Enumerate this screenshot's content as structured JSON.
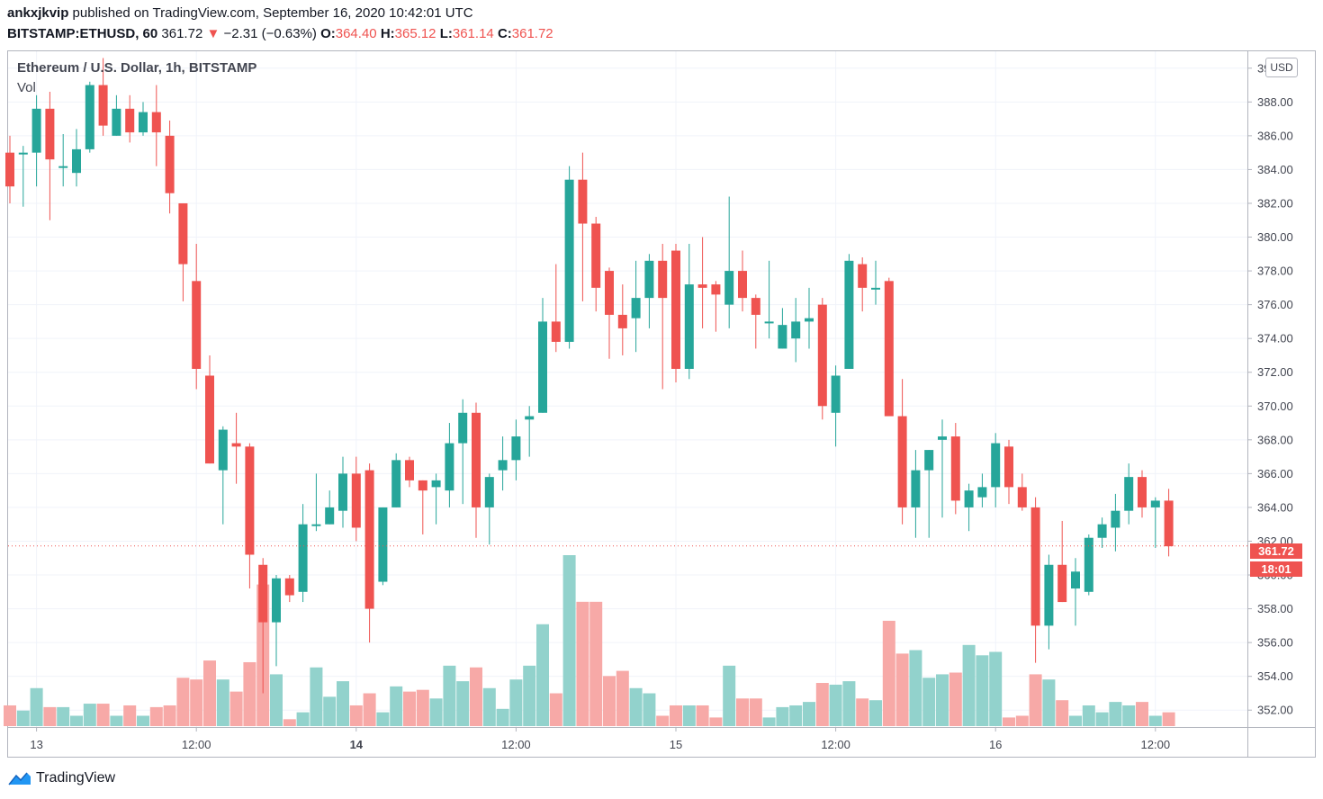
{
  "header": {
    "author": "ankxjkvip",
    "published_text": "published on TradingView.com, September 16, 2020 10:42:01 UTC",
    "symbol": "BITSTAMP:ETHUSD, 60",
    "last": "361.72",
    "change": "−2.31 (−0.63%)",
    "o_label": "O:",
    "o_val": "364.40",
    "h_label": "H:",
    "h_val": "365.12",
    "l_label": "L:",
    "l_val": "361.14",
    "c_label": "C:",
    "c_val": "361.72"
  },
  "legend": {
    "title": "Ethereum / U.S. Dollar, 1h, BITSTAMP",
    "vol": "Vol"
  },
  "currency_button": "USD",
  "price_tag": {
    "price": "361.72",
    "countdown": "18:01"
  },
  "footer": {
    "brand": "TradingView"
  },
  "colors": {
    "up": "#26a69a",
    "down": "#ef5350",
    "up_vol": "#92d2cc",
    "down_vol": "#f7a9a7"
  },
  "chart_data": {
    "type": "candlestick",
    "title": "Ethereum / U.S. Dollar, 1h, BITSTAMP",
    "ylim": [
      351,
      391
    ],
    "y_ticks": [
      352,
      354,
      356,
      358,
      360,
      362,
      364,
      366,
      368,
      370,
      372,
      374,
      376,
      378,
      380,
      382,
      384,
      386,
      388,
      390
    ],
    "x_ticks": [
      {
        "label": "13",
        "bold": false,
        "index": 2
      },
      {
        "label": "12:00",
        "bold": false,
        "index": 14
      },
      {
        "label": "14",
        "bold": true,
        "index": 26
      },
      {
        "label": "12:00",
        "bold": false,
        "index": 38
      },
      {
        "label": "15",
        "bold": false,
        "index": 50
      },
      {
        "label": "12:00",
        "bold": false,
        "index": 62
      },
      {
        "label": "16",
        "bold": false,
        "index": 74
      },
      {
        "label": "12:00",
        "bold": false,
        "index": 86
      }
    ],
    "last_price": 361.72,
    "candles": [
      {
        "o": 385.0,
        "h": 386.0,
        "l": 382.0,
        "c": 383.0,
        "v": 12
      },
      {
        "o": 384.9,
        "h": 385.4,
        "l": 381.8,
        "c": 385.0,
        "v": 9
      },
      {
        "o": 385.0,
        "h": 388.4,
        "l": 383.0,
        "c": 387.6,
        "v": 22
      },
      {
        "o": 387.6,
        "h": 388.6,
        "l": 381.0,
        "c": 384.6,
        "v": 11
      },
      {
        "o": 384.2,
        "h": 386.1,
        "l": 383.0,
        "c": 384.2,
        "v": 11
      },
      {
        "o": 383.8,
        "h": 386.4,
        "l": 383.0,
        "c": 385.2,
        "v": 6
      },
      {
        "o": 385.2,
        "h": 389.2,
        "l": 385.0,
        "c": 389.0,
        "v": 13
      },
      {
        "o": 389.0,
        "h": 390.6,
        "l": 386.0,
        "c": 386.6,
        "v": 13
      },
      {
        "o": 386.0,
        "h": 388.4,
        "l": 386.0,
        "c": 387.6,
        "v": 6
      },
      {
        "o": 387.6,
        "h": 388.4,
        "l": 385.6,
        "c": 386.2,
        "v": 12
      },
      {
        "o": 386.2,
        "h": 388.0,
        "l": 386.0,
        "c": 387.4,
        "v": 6
      },
      {
        "o": 387.4,
        "h": 389.0,
        "l": 384.2,
        "c": 386.2,
        "v": 11
      },
      {
        "o": 386.0,
        "h": 386.9,
        "l": 381.4,
        "c": 382.6,
        "v": 12
      },
      {
        "o": 382.0,
        "h": 382.0,
        "l": 376.2,
        "c": 378.4,
        "v": 28
      },
      {
        "o": 377.4,
        "h": 379.6,
        "l": 371.0,
        "c": 372.2,
        "v": 27
      },
      {
        "o": 371.8,
        "h": 373.0,
        "l": 366.6,
        "c": 366.6,
        "v": 38
      },
      {
        "o": 366.2,
        "h": 368.8,
        "l": 363.0,
        "c": 368.6,
        "v": 27
      },
      {
        "o": 367.8,
        "h": 369.6,
        "l": 365.4,
        "c": 367.6,
        "v": 20
      },
      {
        "o": 367.6,
        "h": 367.8,
        "l": 359.2,
        "c": 361.2,
        "v": 37
      },
      {
        "o": 360.6,
        "h": 361.0,
        "l": 353.0,
        "c": 357.2,
        "v": 82
      },
      {
        "o": 357.2,
        "h": 360.0,
        "l": 354.6,
        "c": 359.8,
        "v": 30
      },
      {
        "o": 359.8,
        "h": 360.0,
        "l": 358.4,
        "c": 358.8,
        "v": 4
      },
      {
        "o": 359.0,
        "h": 364.2,
        "l": 358.4,
        "c": 363.0,
        "v": 8
      },
      {
        "o": 363.0,
        "h": 366.0,
        "l": 362.6,
        "c": 363.0,
        "v": 34
      },
      {
        "o": 363.0,
        "h": 365.0,
        "l": 363.0,
        "c": 364.0,
        "v": 17
      },
      {
        "o": 363.8,
        "h": 367.0,
        "l": 362.8,
        "c": 366.0,
        "v": 26
      },
      {
        "o": 366.0,
        "h": 367.0,
        "l": 362.0,
        "c": 362.8,
        "v": 12
      },
      {
        "o": 366.2,
        "h": 366.6,
        "l": 356.0,
        "c": 358.0,
        "v": 19
      },
      {
        "o": 359.6,
        "h": 364.0,
        "l": 359.4,
        "c": 364.0,
        "v": 8
      },
      {
        "o": 364.0,
        "h": 367.2,
        "l": 364.0,
        "c": 366.8,
        "v": 23
      },
      {
        "o": 366.8,
        "h": 367.0,
        "l": 365.2,
        "c": 365.6,
        "v": 20
      },
      {
        "o": 365.6,
        "h": 365.6,
        "l": 362.4,
        "c": 365.0,
        "v": 21
      },
      {
        "o": 365.2,
        "h": 366.0,
        "l": 363.0,
        "c": 365.6,
        "v": 16
      },
      {
        "o": 365.0,
        "h": 369.0,
        "l": 364.0,
        "c": 367.8,
        "v": 35
      },
      {
        "o": 367.8,
        "h": 370.4,
        "l": 364.2,
        "c": 369.6,
        "v": 26
      },
      {
        "o": 369.6,
        "h": 370.2,
        "l": 362.2,
        "c": 364.0,
        "v": 34
      },
      {
        "o": 364.0,
        "h": 366.0,
        "l": 361.8,
        "c": 365.8,
        "v": 22
      },
      {
        "o": 366.2,
        "h": 368.2,
        "l": 365.0,
        "c": 366.8,
        "v": 10
      },
      {
        "o": 366.8,
        "h": 369.2,
        "l": 365.6,
        "c": 368.2,
        "v": 27
      },
      {
        "o": 369.2,
        "h": 370.0,
        "l": 367.0,
        "c": 369.4,
        "v": 35
      },
      {
        "o": 369.6,
        "h": 376.4,
        "l": 369.6,
        "c": 375.0,
        "v": 59
      },
      {
        "o": 375.0,
        "h": 378.4,
        "l": 373.2,
        "c": 373.8,
        "v": 19
      },
      {
        "o": 373.8,
        "h": 384.2,
        "l": 373.4,
        "c": 383.4,
        "v": 99
      },
      {
        "o": 383.4,
        "h": 385.0,
        "l": 376.2,
        "c": 380.8,
        "v": 72
      },
      {
        "o": 380.8,
        "h": 381.2,
        "l": 375.6,
        "c": 377.0,
        "v": 72
      },
      {
        "o": 378.0,
        "h": 378.2,
        "l": 372.8,
        "c": 375.4,
        "v": 29
      },
      {
        "o": 375.4,
        "h": 377.2,
        "l": 373.0,
        "c": 374.6,
        "v": 32
      },
      {
        "o": 375.2,
        "h": 378.6,
        "l": 373.2,
        "c": 376.4,
        "v": 22
      },
      {
        "o": 376.4,
        "h": 379.0,
        "l": 374.6,
        "c": 378.6,
        "v": 19
      },
      {
        "o": 378.6,
        "h": 379.6,
        "l": 371.0,
        "c": 376.4,
        "v": 6
      },
      {
        "o": 379.2,
        "h": 379.6,
        "l": 371.4,
        "c": 372.2,
        "v": 12
      },
      {
        "o": 372.2,
        "h": 379.6,
        "l": 371.6,
        "c": 377.2,
        "v": 12
      },
      {
        "o": 377.2,
        "h": 380.0,
        "l": 374.6,
        "c": 377.0,
        "v": 12
      },
      {
        "o": 377.2,
        "h": 377.4,
        "l": 374.4,
        "c": 376.6,
        "v": 5
      },
      {
        "o": 376.0,
        "h": 382.4,
        "l": 374.6,
        "c": 378.0,
        "v": 35
      },
      {
        "o": 378.0,
        "h": 379.2,
        "l": 375.6,
        "c": 376.4,
        "v": 16
      },
      {
        "o": 376.4,
        "h": 376.6,
        "l": 373.4,
        "c": 375.4,
        "v": 16
      },
      {
        "o": 375.0,
        "h": 378.6,
        "l": 374.0,
        "c": 375.0,
        "v": 5
      },
      {
        "o": 373.4,
        "h": 375.8,
        "l": 373.4,
        "c": 374.8,
        "v": 11
      },
      {
        "o": 374.0,
        "h": 376.4,
        "l": 372.6,
        "c": 375.0,
        "v": 12
      },
      {
        "o": 375.0,
        "h": 377.0,
        "l": 373.4,
        "c": 375.2,
        "v": 14
      },
      {
        "o": 376.0,
        "h": 376.4,
        "l": 369.2,
        "c": 370.0,
        "v": 25
      },
      {
        "o": 369.6,
        "h": 372.4,
        "l": 367.6,
        "c": 371.8,
        "v": 24
      },
      {
        "o": 372.2,
        "h": 379.0,
        "l": 372.2,
        "c": 378.6,
        "v": 26
      },
      {
        "o": 378.4,
        "h": 378.8,
        "l": 375.6,
        "c": 377.0,
        "v": 16
      },
      {
        "o": 377.0,
        "h": 378.6,
        "l": 376.0,
        "c": 377.0,
        "v": 15
      },
      {
        "o": 377.4,
        "h": 377.6,
        "l": 369.4,
        "c": 369.4,
        "v": 61
      },
      {
        "o": 369.4,
        "h": 371.6,
        "l": 363.0,
        "c": 364.0,
        "v": 42
      },
      {
        "o": 364.0,
        "h": 367.4,
        "l": 362.2,
        "c": 366.2,
        "v": 44
      },
      {
        "o": 366.2,
        "h": 367.4,
        "l": 362.2,
        "c": 367.4,
        "v": 28
      },
      {
        "o": 368.0,
        "h": 369.2,
        "l": 363.4,
        "c": 368.2,
        "v": 30
      },
      {
        "o": 368.2,
        "h": 369.0,
        "l": 363.6,
        "c": 364.4,
        "v": 31
      },
      {
        "o": 364.0,
        "h": 365.4,
        "l": 362.6,
        "c": 365.0,
        "v": 47
      },
      {
        "o": 364.6,
        "h": 366.0,
        "l": 364.0,
        "c": 365.2,
        "v": 41
      },
      {
        "o": 365.2,
        "h": 368.4,
        "l": 364.0,
        "c": 367.8,
        "v": 43
      },
      {
        "o": 367.6,
        "h": 368.0,
        "l": 364.2,
        "c": 365.2,
        "v": 5
      },
      {
        "o": 365.2,
        "h": 366.0,
        "l": 363.8,
        "c": 364.0,
        "v": 6
      },
      {
        "o": 364.0,
        "h": 364.6,
        "l": 354.8,
        "c": 357.0,
        "v": 30
      },
      {
        "o": 357.0,
        "h": 361.2,
        "l": 355.6,
        "c": 360.6,
        "v": 27
      },
      {
        "o": 360.6,
        "h": 363.2,
        "l": 358.4,
        "c": 358.4,
        "v": 15
      },
      {
        "o": 359.2,
        "h": 361.0,
        "l": 357.0,
        "c": 360.2,
        "v": 6
      },
      {
        "o": 359.0,
        "h": 362.4,
        "l": 358.8,
        "c": 362.2,
        "v": 12
      },
      {
        "o": 362.2,
        "h": 363.4,
        "l": 361.6,
        "c": 363.0,
        "v": 8
      },
      {
        "o": 362.8,
        "h": 364.8,
        "l": 361.4,
        "c": 363.8,
        "v": 14
      },
      {
        "o": 363.8,
        "h": 366.6,
        "l": 363.0,
        "c": 365.8,
        "v": 12
      },
      {
        "o": 365.8,
        "h": 366.2,
        "l": 363.4,
        "c": 364.0,
        "v": 14
      },
      {
        "o": 364.0,
        "h": 364.6,
        "l": 361.6,
        "c": 364.4,
        "v": 6
      },
      {
        "o": 364.4,
        "h": 365.1,
        "l": 361.1,
        "c": 361.7,
        "v": 8
      }
    ]
  }
}
